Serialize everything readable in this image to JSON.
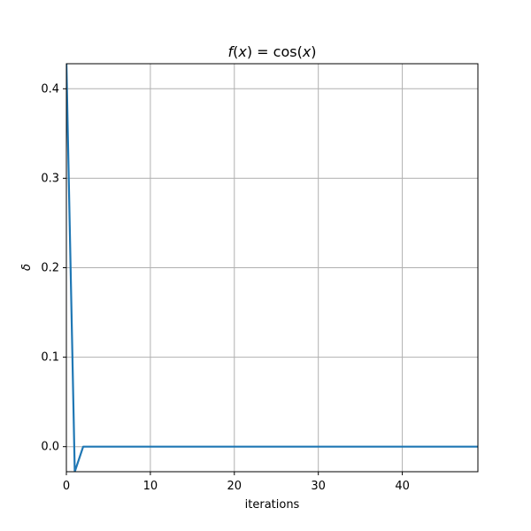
{
  "chart_data": {
    "type": "line",
    "title": "f(x) = cos(x)",
    "title_parts": {
      "f": "f",
      "open1": "(",
      "x1": "x",
      "close1": ") = cos(",
      "x2": "x",
      "close2": ")"
    },
    "xlabel": "iterations",
    "ylabel": "δ",
    "xlim": [
      0,
      49
    ],
    "ylim": [
      -0.028,
      0.428
    ],
    "xticks": [
      0,
      10,
      20,
      30,
      40
    ],
    "yticks": [
      0.0,
      0.1,
      0.2,
      0.3,
      0.4
    ],
    "xtick_labels": [
      "0",
      "10",
      "20",
      "30",
      "40"
    ],
    "ytick_labels": [
      "0.0",
      "0.1",
      "0.2",
      "0.3",
      "0.4"
    ],
    "grid": true,
    "series": [
      {
        "color": "#1f77b4",
        "x": [
          0,
          1,
          2,
          3,
          4,
          5,
          6,
          7,
          8,
          9,
          10,
          11,
          12,
          13,
          14,
          15,
          16,
          17,
          18,
          19,
          20,
          21,
          22,
          23,
          24,
          25,
          26,
          27,
          28,
          29,
          30,
          31,
          32,
          33,
          34,
          35,
          36,
          37,
          38,
          39,
          40,
          41,
          42,
          43,
          44,
          45,
          46,
          47,
          48,
          49
        ],
        "y": [
          0.43,
          -0.028,
          0.0,
          0.0,
          0.0,
          0.0,
          0.0,
          0.0,
          0.0,
          0.0,
          0.0,
          0.0,
          0.0,
          0.0,
          0.0,
          0.0,
          0.0,
          0.0,
          0.0,
          0.0,
          0.0,
          0.0,
          0.0,
          0.0,
          0.0,
          0.0,
          0.0,
          0.0,
          0.0,
          0.0,
          0.0,
          0.0,
          0.0,
          0.0,
          0.0,
          0.0,
          0.0,
          0.0,
          0.0,
          0.0,
          0.0,
          0.0,
          0.0,
          0.0,
          0.0,
          0.0,
          0.0,
          0.0,
          0.0,
          0.0
        ]
      }
    ]
  }
}
